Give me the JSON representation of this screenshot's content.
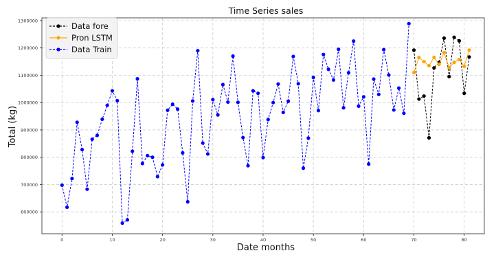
{
  "chart_data": {
    "type": "line",
    "title": "Time Series sales",
    "xlabel": "Date months",
    "ylabel": "Total (kg)",
    "xlim": [
      -4,
      84
    ],
    "ylim": [
      520000,
      1310000
    ],
    "xticks": [
      0,
      10,
      20,
      30,
      40,
      50,
      60,
      70,
      80
    ],
    "yticks": [
      600000,
      700000,
      800000,
      900000,
      1000000,
      1100000,
      1200000,
      1300000
    ],
    "grid": true,
    "grid_style": "dashed",
    "legend_position": "top-left",
    "series": [
      {
        "name": "Data fore",
        "color": "#000000",
        "line_style": "dashed",
        "marker": "circle",
        "x": [
          70,
          71,
          72,
          73,
          74,
          75,
          76,
          77,
          78,
          79,
          80,
          81
        ],
        "y": [
          1192000,
          1013000,
          1024000,
          871000,
          1127000,
          1147000,
          1236000,
          1095000,
          1239000,
          1226000,
          1034000,
          1167000
        ]
      },
      {
        "name": "Pron LSTM",
        "color": "#ffa500",
        "line_style": "solid",
        "marker": "circle",
        "x": [
          70,
          71,
          72,
          73,
          74,
          75,
          76,
          77,
          78,
          79,
          80,
          81
        ],
        "y": [
          1110000,
          1165000,
          1150000,
          1135000,
          1165000,
          1140000,
          1183000,
          1128000,
          1147000,
          1158000,
          1133000,
          1192000
        ]
      },
      {
        "name": "Data Train",
        "color": "#0000ff",
        "line_style": "dashed",
        "marker": "circle",
        "x": [
          0,
          1,
          2,
          3,
          4,
          5,
          6,
          7,
          8,
          9,
          10,
          11,
          12,
          13,
          14,
          15,
          16,
          17,
          18,
          19,
          20,
          21,
          22,
          23,
          24,
          25,
          26,
          27,
          28,
          29,
          30,
          31,
          32,
          33,
          34,
          35,
          36,
          37,
          38,
          39,
          40,
          41,
          42,
          43,
          44,
          45,
          46,
          47,
          48,
          49,
          50,
          51,
          52,
          53,
          54,
          55,
          56,
          57,
          58,
          59,
          60,
          61,
          62,
          63,
          64,
          65,
          66,
          67,
          68,
          69
        ],
        "y": [
          698000,
          617000,
          722000,
          928000,
          828000,
          683000,
          866000,
          880000,
          939000,
          990000,
          1043000,
          1007000,
          559000,
          571000,
          822000,
          1087000,
          777000,
          806000,
          800000,
          729000,
          772000,
          972000,
          994000,
          976000,
          816000,
          637000,
          1006000,
          1190000,
          852000,
          812000,
          1011000,
          955000,
          1066000,
          1002000,
          1170000,
          1001000,
          872000,
          769000,
          1043000,
          1034000,
          799000,
          938000,
          1000000,
          1068000,
          964000,
          1005000,
          1169000,
          1069000,
          760000,
          870000,
          1092000,
          971000,
          1176000,
          1122000,
          1083000,
          1195000,
          981000,
          1109000,
          1225000,
          987000,
          1021000,
          775000,
          1086000,
          1030000,
          1194000,
          1101000,
          973000,
          1053000,
          961000,
          1289000
        ]
      }
    ]
  }
}
